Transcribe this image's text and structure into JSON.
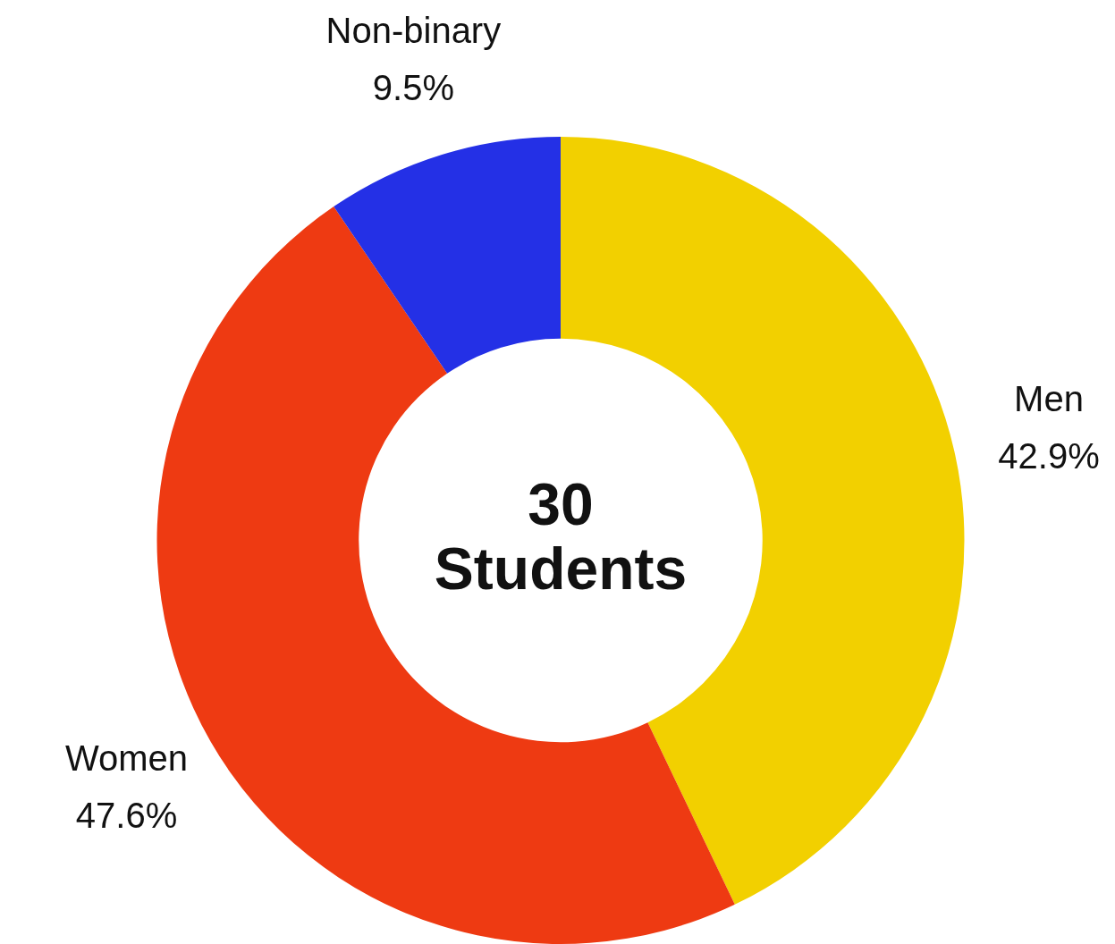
{
  "chart_data": {
    "type": "donut",
    "categories": [
      "Men",
      "Women",
      "Non-binary"
    ],
    "values": [
      42.9,
      47.6,
      9.5
    ],
    "colors": [
      "#f2d000",
      "#ee3a12",
      "#2430e6"
    ],
    "value_labels": [
      "42.9%",
      "47.6%",
      "9.5%"
    ],
    "legend": false,
    "annotations": [
      "30",
      "Students"
    ]
  }
}
